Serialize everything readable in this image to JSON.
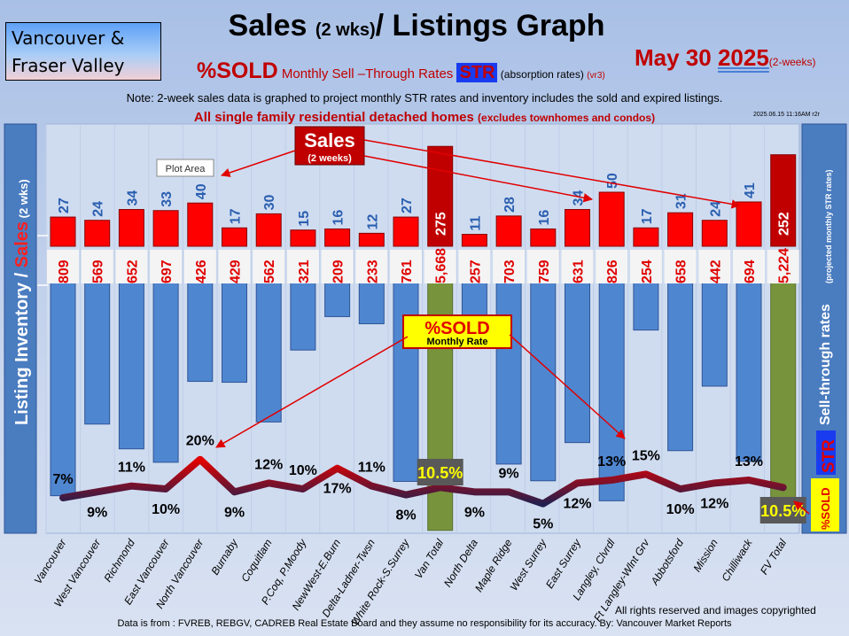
{
  "region_box": {
    "line1": "Vancouver &",
    "line2": "Fraser Valley"
  },
  "header": {
    "title_main": "Sales ",
    "title_small": "(2 wks)",
    "title_end": "/ Listings Graph",
    "date_prefix": "May 30 ",
    "date_year": "2025",
    "date_suffix": "(2-weeks)",
    "subtitle_sold": "%SOLD",
    "subtitle_text": " Monthly Sell –Through Rates ",
    "subtitle_str": "STR",
    "subtitle_abs": "  (absorption rates) ",
    "subtitle_vr": "(vr3)",
    "note": "Note: 2-week sales data is graphed to project monthly STR rates and inventory includes the sold and expired listings.",
    "sfr": "All single family residential detached homes ",
    "sfr_small": "(excludes townhomes and condos)",
    "stamp": "2025.06.15 11:16AM r2r"
  },
  "side": {
    "left_a": "Listing Inventory / ",
    "left_b": "Sales",
    "left_c": " (2  wks)",
    "right_a": "Sell-through rates",
    "right_b": "(projected monthly STR rates)",
    "right_str": "STR",
    "right_sold": "%SOLD"
  },
  "callouts": {
    "sales": "Sales",
    "sales_sub": "(2 weeks)",
    "sold": "%SOLD",
    "sold_sub": "Monthly Rate",
    "plot_area": "Plot Area"
  },
  "colors": {
    "sales": "#ff0000",
    "listings": "#4f86d0",
    "totals": "#77933c",
    "line_low": "#1f2050",
    "line_high": "#e00000"
  },
  "chart_data": {
    "type": "bar",
    "categories": [
      "Vancouver",
      "West Vancouver",
      "Richmond",
      "East Vancouver",
      "North Vancouver",
      "Burnaby",
      "Coquitlam",
      "P.Coq, P.Moody",
      "NewWest-E.Burn",
      "Delta-Ladner-Twsn",
      "White Rock-S.Surrey",
      "Van Total",
      "North Delta",
      "Maple Ridge",
      "West Surrey",
      "East Surrey",
      "Langley, Clvrdl",
      "Ft Langley-Wlnt Grv",
      "Abbotsford",
      "Mission",
      "Chilliwack",
      "FV Total"
    ],
    "series": [
      {
        "name": "Sales",
        "values": [
          27,
          24,
          34,
          33,
          40,
          17,
          30,
          15,
          16,
          12,
          27,
          275,
          11,
          28,
          16,
          34,
          50,
          17,
          31,
          24,
          41,
          252
        ]
      },
      {
        "name": "Listing Inventory",
        "values": [
          809,
          569,
          652,
          697,
          426,
          429,
          562,
          321,
          209,
          233,
          761,
          5668,
          257,
          703,
          759,
          631,
          826,
          254,
          658,
          442,
          694,
          5224
        ]
      },
      {
        "name": "%SOLD",
        "type": "line",
        "values": [
          7,
          9,
          11,
          10,
          20,
          9,
          12,
          10,
          17,
          11,
          8,
          10.5,
          9,
          9,
          5,
          12,
          13,
          15,
          10,
          12,
          13,
          10.5
        ]
      }
    ],
    "listing_labels": [
      "809",
      "569",
      "652",
      "697",
      "426",
      "429",
      "562",
      "321",
      "209",
      "233",
      "761",
      "5,668",
      "257",
      "703",
      "759",
      "631",
      "826",
      "254",
      "658",
      "442",
      "694",
      "5,224"
    ],
    "str_labels": [
      "7%",
      "9%",
      "11%",
      "10%",
      "20%",
      "9%",
      "12%",
      "10%",
      "17%",
      "11%",
      "8%",
      "10.5%",
      "9%",
      "9%",
      "5%",
      "12%",
      "13%",
      "15%",
      "10%",
      "12%",
      "13%",
      "10.5%"
    ],
    "totals_indices": [
      11,
      21
    ],
    "grid": true
  },
  "footer": {
    "rights": "All rights reserved and  images copyrighted",
    "source": "Data is from : FVREB, REBGV, CADREB Real Estate Board and they assume no responsibility for its accuracy. By: Vancouver Market Reports"
  }
}
